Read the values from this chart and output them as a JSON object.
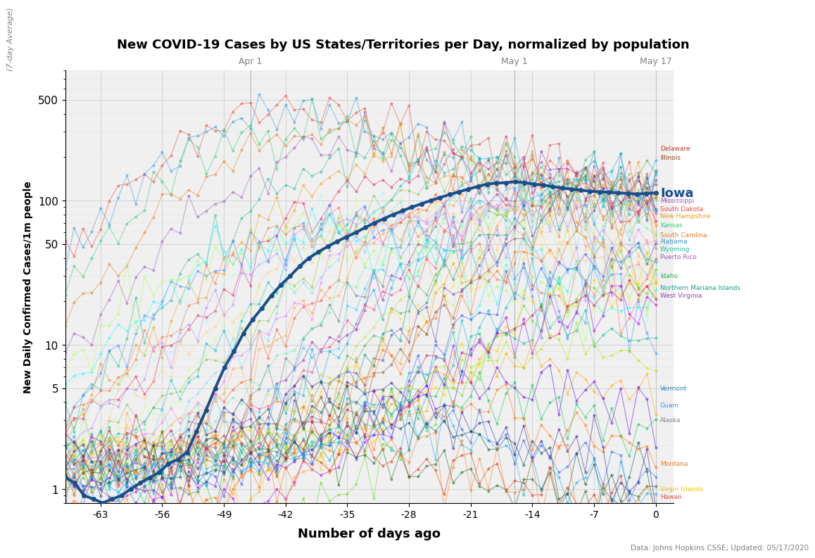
{
  "title": "New COVID-19 Cases by US States/Territories per Day, normalized by population",
  "ylabel_main": "New Daily Confirmed Cases/1m people",
  "ylabel_sub": "(7-day Average)",
  "xlabel": "Number of days ago",
  "source": "Data: Johns Hopkins CSSE; Updated: 05/17/2020",
  "date_labels": {
    "Apr 1": -46,
    "May 1": -16,
    "May 17": 0
  },
  "x_ticks": [
    -63,
    -56,
    -49,
    -42,
    -35,
    -28,
    -21,
    -14,
    -7,
    0
  ],
  "iowa_color": "#1a4e8a",
  "background_color": "#f0f0f0",
  "grid_color": "#cccccc",
  "iowa_label": "Iowa",
  "iowa_data": [
    1.2,
    1.1,
    0.9,
    0.85,
    0.8,
    0.85,
    0.9,
    1.0,
    1.1,
    1.2,
    1.3,
    1.5,
    1.6,
    1.8,
    2.5,
    3.5,
    5.0,
    7.0,
    9.0,
    12.0,
    15.0,
    18.0,
    22.0,
    26.0,
    30.0,
    35.0,
    40.0,
    44.0,
    48.0,
    52.0,
    56.0,
    60.0,
    65.0,
    70.0,
    75.0,
    80.0,
    85.0,
    90.0,
    95.0,
    100.0,
    105.0,
    110.0,
    115.0,
    120.0,
    125.0,
    130.0,
    132.0,
    133.0,
    135.0,
    133.0,
    130.0,
    128.0,
    125.0,
    122.0,
    120.0,
    118.0,
    116.0,
    115.0,
    114.0,
    113.0,
    112.0,
    111.0,
    112.0,
    113.0
  ],
  "x_range": [
    -67,
    2
  ],
  "ylim_log": [
    0.8,
    800
  ],
  "colors_bg": [
    "#e74c3c",
    "#3498db",
    "#2ecc71",
    "#e67e22",
    "#9b59b6",
    "#1abc9c",
    "#f39c12",
    "#e91e63",
    "#00bcd4",
    "#8bc34a",
    "#ff5722",
    "#607d8b",
    "#9c27b0",
    "#03a9f4",
    "#4caf50",
    "#ff9800",
    "#795548",
    "#673ab7",
    "#009688",
    "#cddc39",
    "#ff4081",
    "#40c4ff",
    "#69f0ae",
    "#ffab40",
    "#ea80fc",
    "#80d8ff",
    "#ccff90",
    "#ffd180",
    "#b388ff",
    "#a7ffeb",
    "#ff6e40",
    "#448aff",
    "#18ffff",
    "#b2ff59",
    "#ffd740",
    "#ff6d00",
    "#304ffe",
    "#00b8d4",
    "#64dd17",
    "#ffd600",
    "#c51162",
    "#aa00ff",
    "#00bfa5",
    "#aeea00",
    "#ffab00",
    "#6200ea",
    "#00c853",
    "#ff6f00",
    "#2962ff",
    "#00b0ff",
    "#dd2c00",
    "#1b5e20",
    "#311b92",
    "#004d40",
    "#f57f17",
    "#880e4f",
    "#e65100",
    "#0d47a1",
    "#1a237e",
    "#33691e",
    "#aaaaaa",
    "#888888",
    "#666666",
    "#444444"
  ],
  "state_params": [
    [
      -42,
      490
    ],
    [
      -42,
      450
    ],
    [
      -40,
      380
    ],
    [
      -38,
      320
    ],
    [
      -35,
      280
    ],
    [
      -30,
      250
    ],
    [
      -28,
      230
    ],
    [
      -25,
      210
    ],
    [
      -20,
      200
    ],
    [
      -18,
      190
    ],
    [
      -15,
      180
    ],
    [
      -12,
      170
    ],
    [
      -10,
      165
    ],
    [
      -8,
      160
    ],
    [
      -5,
      155
    ],
    [
      -3,
      150
    ],
    [
      0,
      145
    ],
    [
      -2,
      140
    ],
    [
      -5,
      135
    ],
    [
      -7,
      130
    ],
    [
      -10,
      125
    ],
    [
      -12,
      120
    ],
    [
      -15,
      115
    ],
    [
      -18,
      110
    ],
    [
      -20,
      105
    ],
    [
      -22,
      100
    ],
    [
      -25,
      95
    ],
    [
      -27,
      90
    ],
    [
      -30,
      85
    ],
    [
      -32,
      80
    ],
    [
      -35,
      75
    ],
    [
      -37,
      70
    ],
    [
      -40,
      65
    ],
    [
      -42,
      60
    ],
    [
      -10,
      55
    ],
    [
      -8,
      50
    ],
    [
      -5,
      45
    ],
    [
      -3,
      40
    ],
    [
      0,
      35
    ],
    [
      -2,
      30
    ],
    [
      -5,
      25
    ],
    [
      -7,
      20
    ],
    [
      -10,
      15
    ],
    [
      -12,
      10
    ],
    [
      -15,
      8
    ],
    [
      -18,
      6
    ],
    [
      -20,
      5
    ],
    [
      -22,
      4
    ],
    [
      -25,
      3
    ],
    [
      -27,
      2.5
    ],
    [
      -30,
      2
    ],
    [
      -32,
      1.8
    ],
    [
      -35,
      5
    ],
    [
      -37,
      4
    ],
    [
      -40,
      3
    ]
  ],
  "right_labels": [
    [
      "Delaware",
      230,
      "#c0392b"
    ],
    [
      "Illinois",
      200,
      "#8b4513"
    ],
    [
      "Mississippi",
      100,
      "#9b59b6"
    ],
    [
      "South Dakota",
      88,
      "#e74c3c"
    ],
    [
      "New Hampshire",
      78,
      "#f39c12"
    ],
    [
      "Kansas",
      68,
      "#2ecc71"
    ],
    [
      "South Carolina",
      58,
      "#e67e22"
    ],
    [
      "Alabama",
      52,
      "#3498db"
    ],
    [
      "Wyoming",
      46,
      "#1abc9c"
    ],
    [
      "Puerto Rico",
      41,
      "#9b59b6"
    ],
    [
      "Idaho",
      30,
      "#27ae60"
    ],
    [
      "Northern Mariana Islands",
      25,
      "#16a085"
    ],
    [
      "West Virginia",
      22,
      "#8e44ad"
    ],
    [
      "Vermont",
      5.0,
      "#2980b9"
    ],
    [
      "Guam",
      3.8,
      "#3498db"
    ],
    [
      "Alaska",
      3.0,
      "#7f8c8d"
    ],
    [
      "Montana",
      1.5,
      "#e67e22"
    ],
    [
      "Virgin Islands",
      1.0,
      "#f1c40f"
    ],
    [
      "Hawaii",
      0.88,
      "#e74c3c"
    ]
  ]
}
